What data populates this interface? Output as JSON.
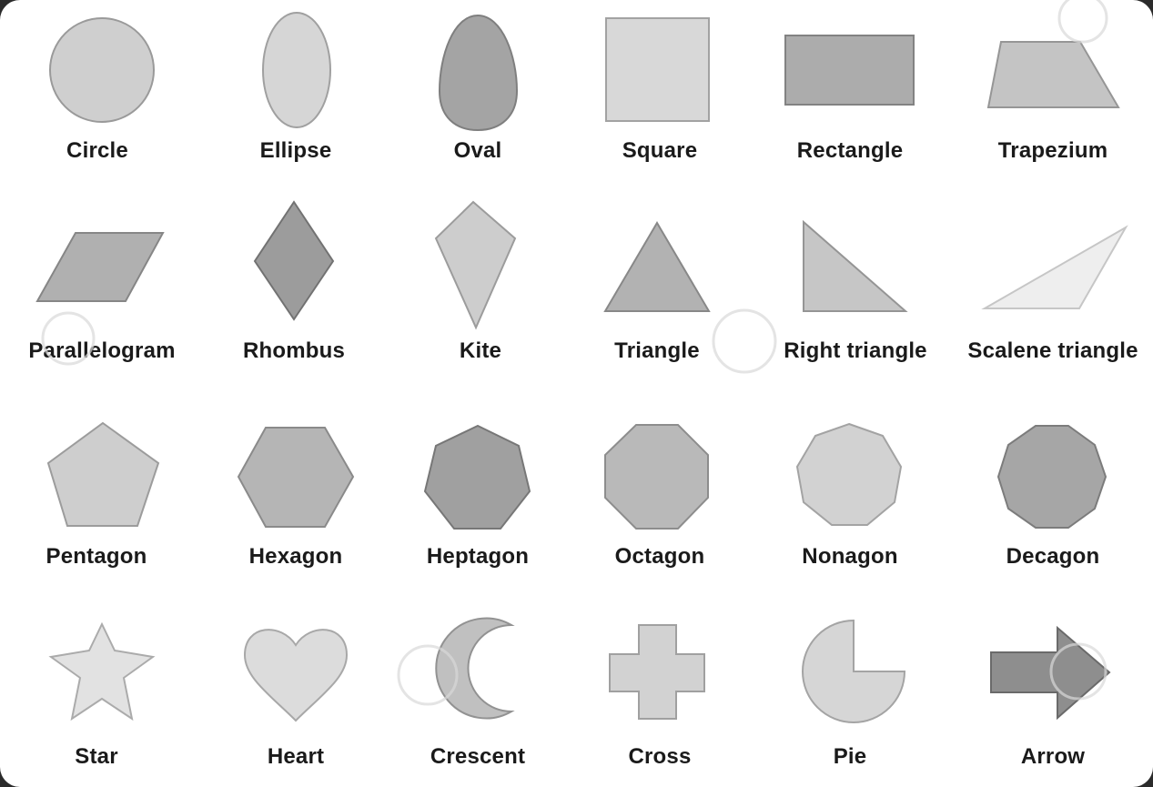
{
  "colors": {
    "board": "#ffffff",
    "label_text": "#1a1a1a",
    "stroke": "#8a8a8a"
  },
  "shapes": [
    {
      "key": "circle",
      "label": "Circle",
      "fill": "#cfcfcf",
      "stroke": "#9a9a9a"
    },
    {
      "key": "ellipse",
      "label": "Ellipse",
      "fill": "#d6d6d6",
      "stroke": "#a0a0a0"
    },
    {
      "key": "oval",
      "label": "Oval",
      "fill": "#a4a4a4",
      "stroke": "#7f7f7f"
    },
    {
      "key": "square",
      "label": "Square",
      "fill": "#d8d8d8",
      "stroke": "#a2a2a2"
    },
    {
      "key": "rectangle",
      "label": "Rectangle",
      "fill": "#acacac",
      "stroke": "#828282"
    },
    {
      "key": "trapezium",
      "label": "Trapezium",
      "fill": "#c4c4c4",
      "stroke": "#969696"
    },
    {
      "key": "parallelogram",
      "label": "Parallelogram",
      "fill": "#b0b0b0",
      "stroke": "#868686"
    },
    {
      "key": "rhombus",
      "label": "Rhombus",
      "fill": "#9c9c9c",
      "stroke": "#727272"
    },
    {
      "key": "kite",
      "label": "Kite",
      "fill": "#cdcdcd",
      "stroke": "#9c9c9c"
    },
    {
      "key": "triangle",
      "label": "Triangle",
      "fill": "#b2b2b2",
      "stroke": "#888888"
    },
    {
      "key": "right-triangle",
      "label": "Right triangle",
      "fill": "#c6c6c6",
      "stroke": "#959595"
    },
    {
      "key": "scalene-triangle",
      "label": "Scalene triangle",
      "fill": "#eeeeee",
      "stroke": "#c6c6c6"
    },
    {
      "key": "pentagon",
      "label": "Pentagon",
      "fill": "#cecece",
      "stroke": "#9c9c9c"
    },
    {
      "key": "hexagon",
      "label": "Hexagon",
      "fill": "#b5b5b5",
      "stroke": "#8a8a8a"
    },
    {
      "key": "heptagon",
      "label": "Heptagon",
      "fill": "#a0a0a0",
      "stroke": "#777777"
    },
    {
      "key": "octagon",
      "label": "Octagon",
      "fill": "#b9b9b9",
      "stroke": "#8d8d8d"
    },
    {
      "key": "nonagon",
      "label": "Nonagon",
      "fill": "#d2d2d2",
      "stroke": "#a3a3a3"
    },
    {
      "key": "decagon",
      "label": "Decagon",
      "fill": "#a6a6a6",
      "stroke": "#7c7c7c"
    },
    {
      "key": "star",
      "label": "Star",
      "fill": "#e2e2e2",
      "stroke": "#ababab"
    },
    {
      "key": "heart",
      "label": "Heart",
      "fill": "#dcdcdc",
      "stroke": "#a8a8a8"
    },
    {
      "key": "crescent",
      "label": "Crescent",
      "fill": "#c0c0c0",
      "stroke": "#929292"
    },
    {
      "key": "cross",
      "label": "Cross",
      "fill": "#d2d2d2",
      "stroke": "#a0a0a0"
    },
    {
      "key": "pie",
      "label": "Pie",
      "fill": "#d6d6d6",
      "stroke": "#a4a4a4"
    },
    {
      "key": "arrow",
      "label": "Arrow",
      "fill": "#8e8e8e",
      "stroke": "#6a6a6a"
    }
  ]
}
